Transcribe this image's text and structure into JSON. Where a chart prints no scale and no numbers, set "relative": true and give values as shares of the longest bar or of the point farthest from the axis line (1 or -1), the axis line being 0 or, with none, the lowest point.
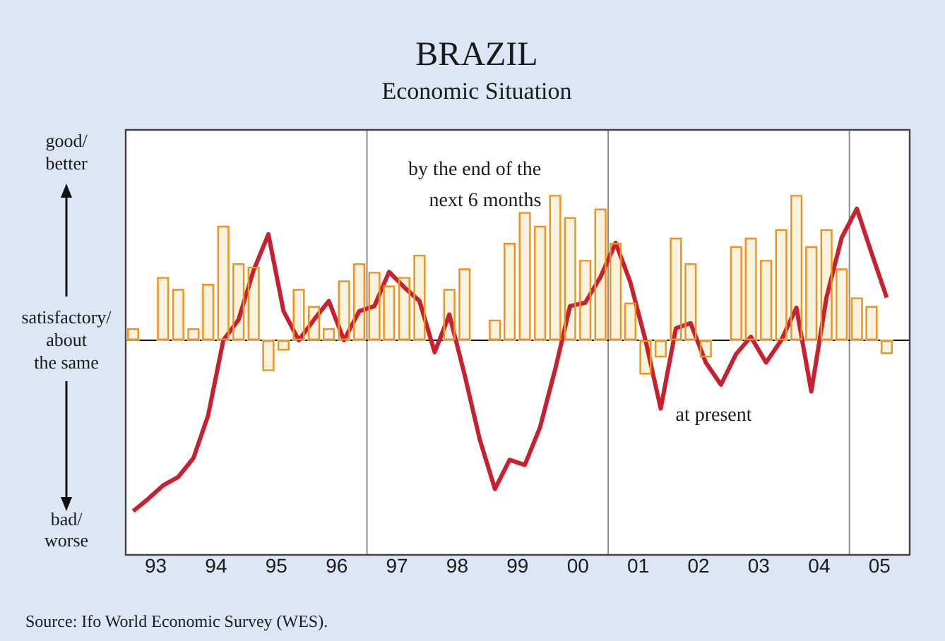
{
  "chart_data": {
    "type": "bar",
    "title": "BRAZIL",
    "subtitle": "Economic Situation",
    "relative": true,
    "x": [
      "1993-02-15",
      "1993-05-15",
      "1993-08-15",
      "1993-11-15",
      "1994-02-15",
      "1994-05-15",
      "1994-08-15",
      "1994-11-15",
      "1995-02-15",
      "1995-05-15",
      "1995-08-15",
      "1995-11-15",
      "1996-02-15",
      "1996-05-15",
      "1996-08-15",
      "1996-11-15",
      "1997-02-15",
      "1997-05-15",
      "1997-08-15",
      "1997-11-15",
      "1998-02-15",
      "1998-05-15",
      "1998-08-15",
      "1998-11-15",
      "1999-02-15",
      "1999-05-15",
      "1999-08-15",
      "1999-11-15",
      "2000-02-15",
      "2000-05-15",
      "2000-08-15",
      "2000-11-15",
      "2001-02-15",
      "2001-05-15",
      "2001-08-15",
      "2001-11-15",
      "2002-02-15",
      "2002-05-15",
      "2002-08-15",
      "2002-11-15",
      "2003-02-15",
      "2003-05-15",
      "2003-08-15",
      "2003-11-15",
      "2004-02-15",
      "2004-05-15",
      "2004-08-15",
      "2004-11-15",
      "2005-02-15",
      "2005-05-15",
      "2005-08-15"
    ],
    "xlim": [
      "1993-01-01",
      "2006-01-01"
    ],
    "xticks": [
      {
        "value": "1993-07-02",
        "label": "93"
      },
      {
        "value": "1994-07-02",
        "label": "94"
      },
      {
        "value": "1995-07-02",
        "label": "95"
      },
      {
        "value": "1996-07-02",
        "label": "96"
      },
      {
        "value": "1997-07-02",
        "label": "97"
      },
      {
        "value": "1998-07-02",
        "label": "98"
      },
      {
        "value": "1999-07-02",
        "label": "99"
      },
      {
        "value": "2000-07-02",
        "label": "00"
      },
      {
        "value": "2001-07-02",
        "label": "01"
      },
      {
        "value": "2002-07-02",
        "label": "02"
      },
      {
        "value": "2003-07-02",
        "label": "03"
      },
      {
        "value": "2004-07-02",
        "label": "04"
      },
      {
        "value": "2005-07-02",
        "label": "05"
      }
    ],
    "series": [
      {
        "name": "by the end of the\nnext 6 months",
        "color": "#f8f2df",
        "values": [
          0.07,
          null,
          0.37,
          0.3,
          0.07,
          0.33,
          0.67,
          0.45,
          0.43,
          -0.18,
          -0.06,
          0.3,
          0.2,
          0.07,
          0.35,
          0.45,
          0.4,
          0.32,
          0.37,
          0.5,
          null,
          0.3,
          0.42,
          null,
          0.12,
          0.57,
          0.75,
          0.67,
          0.85,
          0.72,
          0.47,
          0.77,
          0.57,
          0.22,
          -0.2,
          -0.1,
          0.6,
          0.45,
          -0.1,
          null,
          0.55,
          0.6,
          0.47,
          0.65,
          0.85,
          0.55,
          0.65,
          0.42,
          0.25,
          0.2,
          -0.08
        ]
      },
      {
        "name": "at present",
        "type": "line",
        "color": "#c8202e",
        "values": [
          -1.0,
          -0.93,
          -0.85,
          -0.8,
          -0.69,
          -0.44,
          0,
          0.12,
          0.41,
          0.62,
          0.17,
          0,
          0.12,
          0.23,
          0,
          0.17,
          0.2,
          0.4,
          0.31,
          0.23,
          -0.07,
          0.15,
          -0.2,
          -0.58,
          -0.87,
          -0.7,
          -0.73,
          -0.51,
          -0.17,
          0.2,
          0.22,
          0.37,
          0.57,
          0.34,
          0,
          -0.4,
          0.07,
          0.1,
          -0.13,
          -0.26,
          -0.08,
          0.02,
          -0.13,
          0,
          0.19,
          -0.3,
          0.25,
          0.6,
          0.77,
          0.51,
          0.25
        ]
      }
    ],
    "ref_lines": [
      {
        "axis": "x",
        "value": "1997-01-01",
        "color": "#8c8c8c"
      },
      {
        "axis": "x",
        "value": "2001-01-01",
        "color": "#8c8c8c"
      },
      {
        "axis": "x",
        "value": "2005-01-01",
        "color": "#8c8c8c"
      }
    ],
    "legend": false,
    "grid": false,
    "marker": "none",
    "line_style": "solid",
    "annotations": [
      "good/\nbetter",
      "satisfactory/\nabout\nthe same",
      "bad/\nworse",
      "Source: Ifo World Economic Survey (WES)."
    ]
  }
}
